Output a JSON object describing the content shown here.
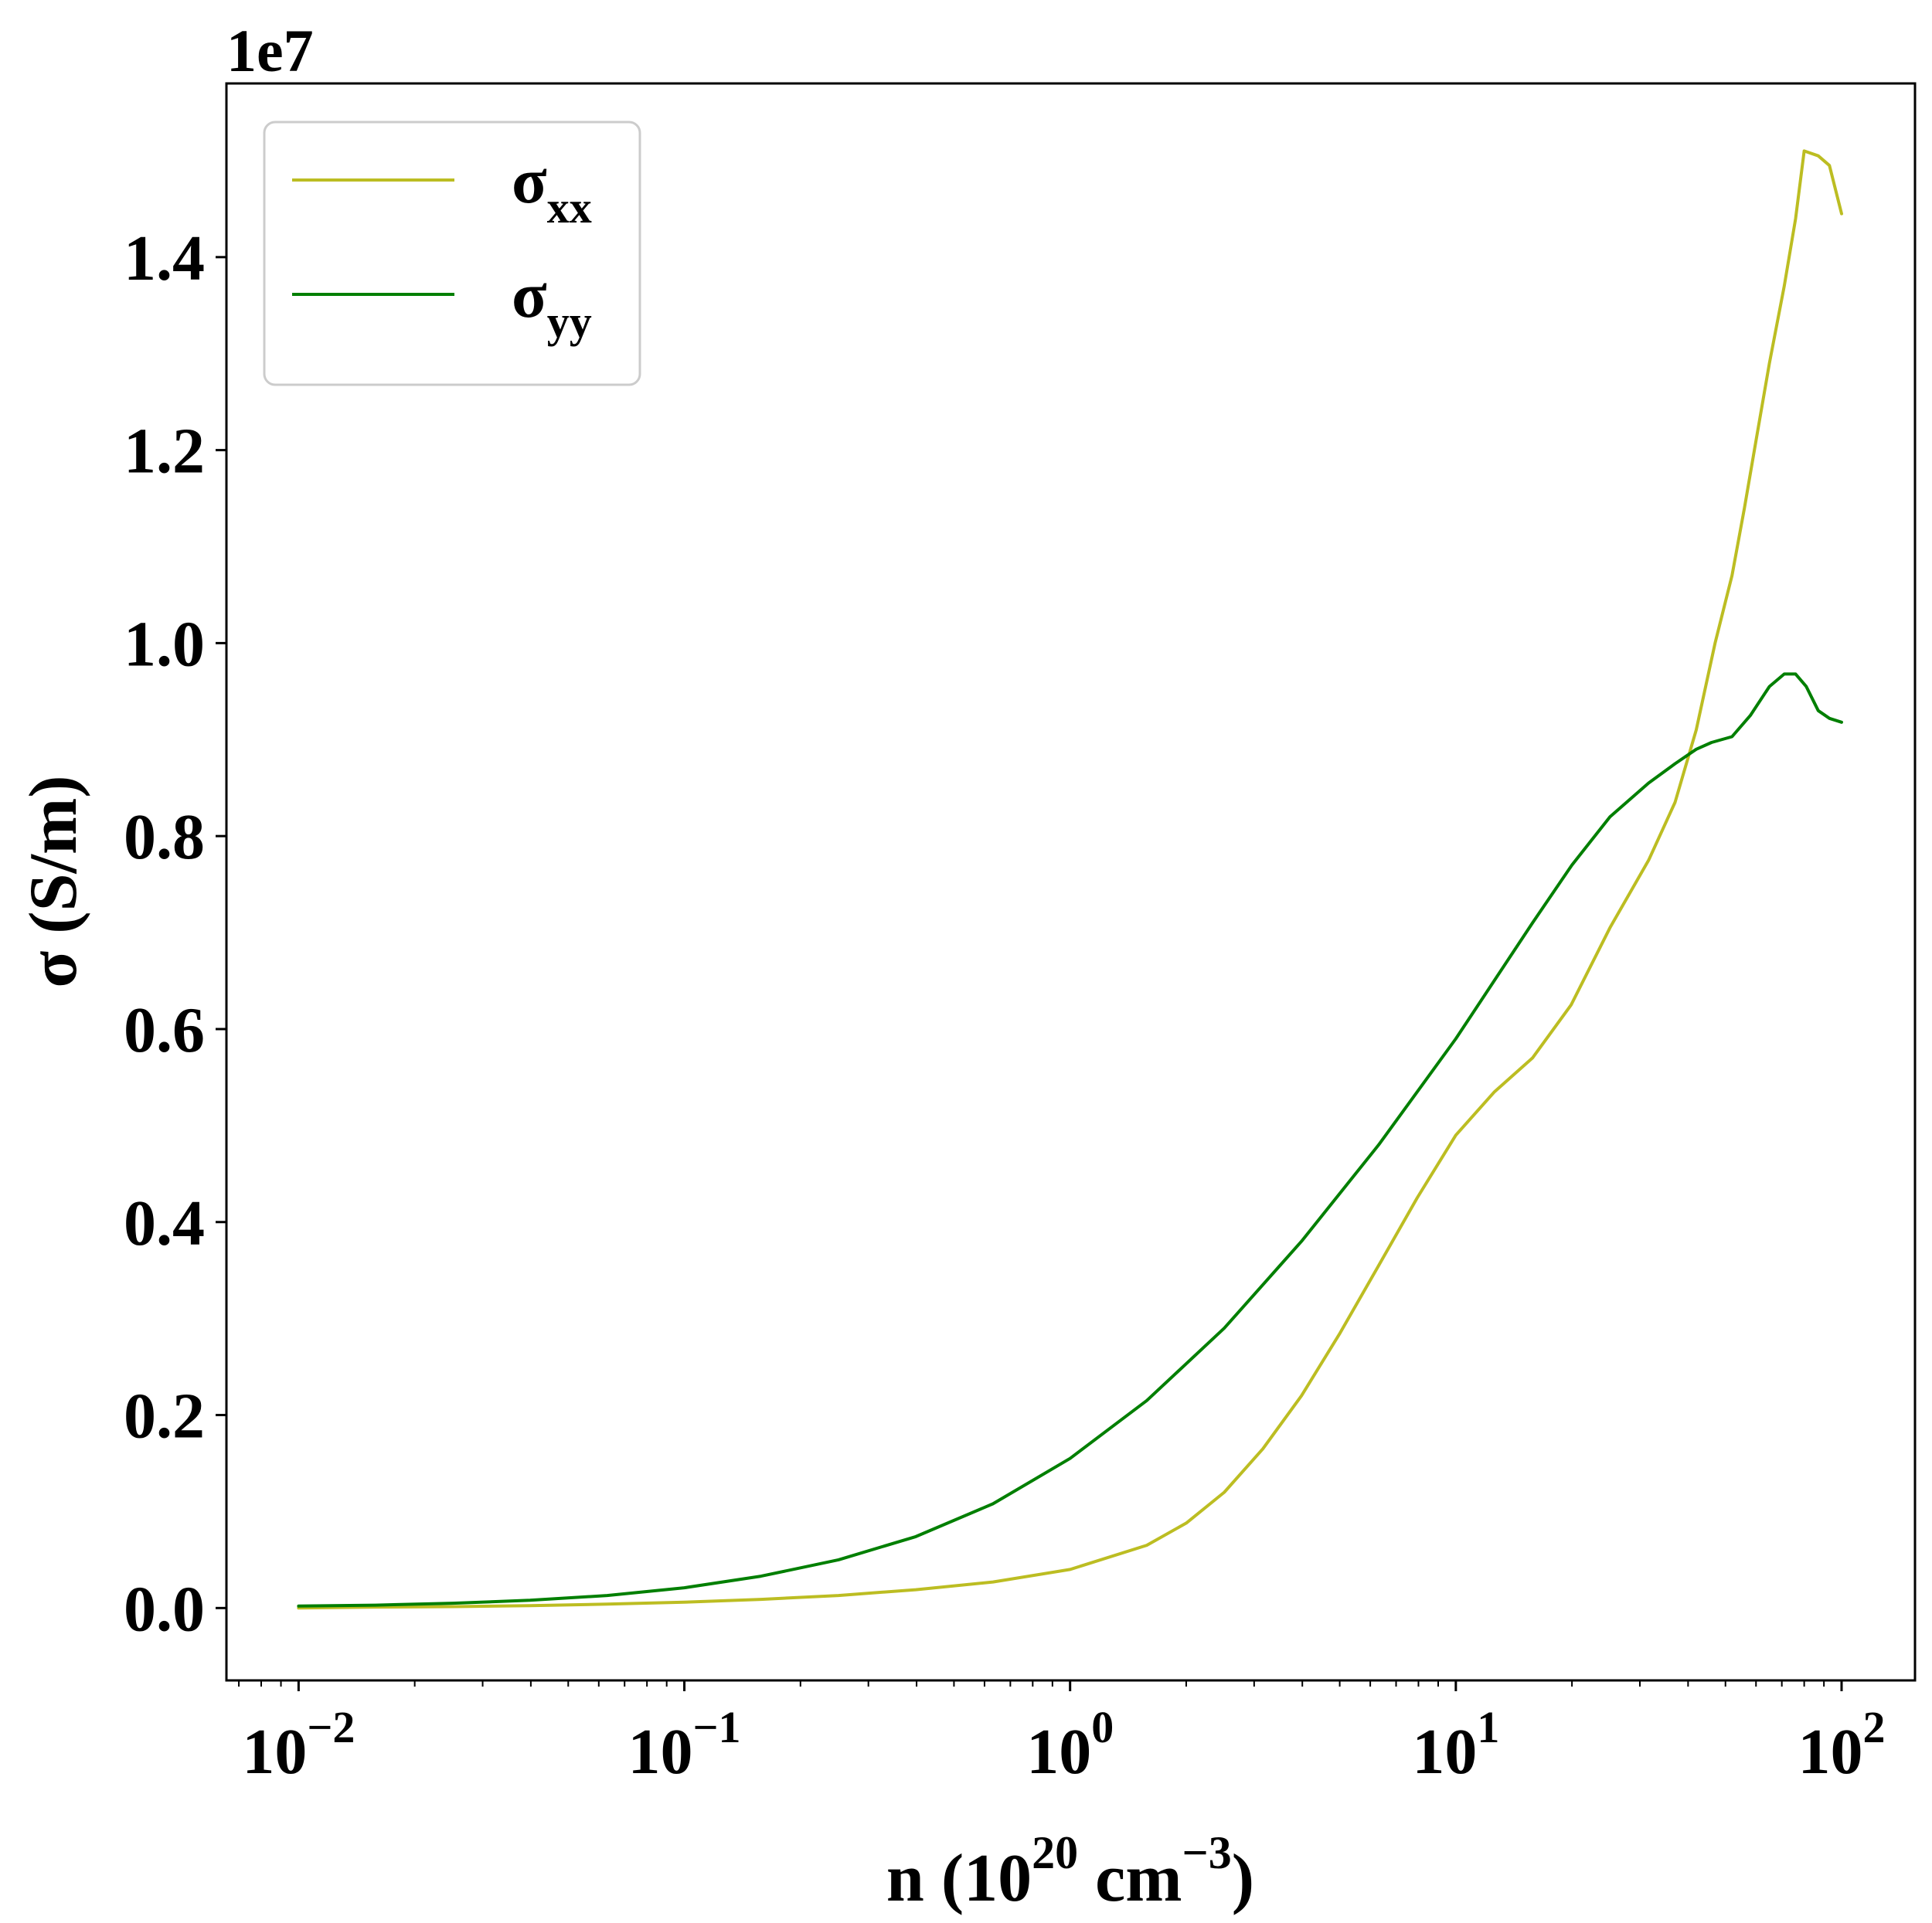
{
  "chart_data": {
    "type": "line",
    "x_scale": "log",
    "xlim": [
      0.0065,
      155
    ],
    "ylim": [
      -0.075,
      1.58
    ],
    "y_offset_label": "1e7",
    "xlabel": {
      "base": "n (10",
      "exp1": "20",
      "mid": " cm",
      "exp2": "−3",
      "end": ")"
    },
    "ylabel": "σ (S/m)",
    "grid": false,
    "legend_placement": "upper-left",
    "y_ticks": [
      {
        "value": 0.0,
        "label": "0.0"
      },
      {
        "value": 0.2,
        "label": "0.2"
      },
      {
        "value": 0.4,
        "label": "0.4"
      },
      {
        "value": 0.6,
        "label": "0.6"
      },
      {
        "value": 0.8,
        "label": "0.8"
      },
      {
        "value": 1.0,
        "label": "1.0"
      },
      {
        "value": 1.2,
        "label": "1.2"
      },
      {
        "value": 1.4,
        "label": "1.4"
      }
    ],
    "x_ticks": [
      {
        "value": 0.01,
        "base": "10",
        "exp": "−2"
      },
      {
        "value": 0.1,
        "base": "10",
        "exp": "−1"
      },
      {
        "value": 1,
        "base": "10",
        "exp": "0"
      },
      {
        "value": 10,
        "base": "10",
        "exp": "1"
      },
      {
        "value": 100,
        "base": "10",
        "exp": "2"
      }
    ],
    "series": [
      {
        "name": "σ",
        "subscript": "xx",
        "color": "#bcbd22",
        "x": [
          0.01,
          0.0158,
          0.0251,
          0.0398,
          0.0631,
          0.1,
          0.158,
          0.251,
          0.398,
          0.631,
          1.0,
          1.58,
          2.0,
          2.51,
          3.16,
          3.98,
          5.01,
          6.31,
          7.94,
          10.0,
          12.6,
          15.8,
          19.9,
          25.1,
          31.6,
          37.0,
          42.0,
          47.0,
          52.0,
          56.0,
          60.0,
          65.0,
          71.0,
          76.0,
          80.0,
          87.0,
          93.0,
          100.0
        ],
        "y": [
          0.0,
          0.001,
          0.0015,
          0.0025,
          0.004,
          0.006,
          0.009,
          0.013,
          0.019,
          0.027,
          0.04,
          0.065,
          0.088,
          0.12,
          0.165,
          0.22,
          0.285,
          0.355,
          0.425,
          0.49,
          0.535,
          0.57,
          0.625,
          0.705,
          0.775,
          0.835,
          0.91,
          1.0,
          1.07,
          1.14,
          1.21,
          1.29,
          1.37,
          1.44,
          1.51,
          1.505,
          1.495,
          1.445
        ]
      },
      {
        "name": "σ",
        "subscript": "yy",
        "color": "#007f00",
        "x": [
          0.01,
          0.0158,
          0.0251,
          0.0398,
          0.0631,
          0.1,
          0.158,
          0.251,
          0.398,
          0.631,
          1.0,
          1.58,
          2.51,
          3.98,
          6.31,
          10.0,
          15.8,
          20.0,
          25.1,
          31.6,
          37.0,
          42.0,
          46.0,
          52.0,
          58.0,
          65.0,
          71.0,
          76.0,
          81.0,
          87.0,
          93.0,
          100.0
        ],
        "y": [
          0.002,
          0.003,
          0.005,
          0.008,
          0.013,
          0.021,
          0.033,
          0.05,
          0.074,
          0.108,
          0.155,
          0.215,
          0.29,
          0.38,
          0.48,
          0.59,
          0.71,
          0.77,
          0.82,
          0.855,
          0.875,
          0.89,
          0.897,
          0.903,
          0.925,
          0.955,
          0.968,
          0.968,
          0.955,
          0.93,
          0.922,
          0.918
        ]
      }
    ]
  }
}
